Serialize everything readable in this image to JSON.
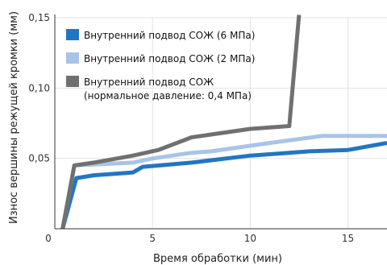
{
  "chart_data": {
    "type": "line",
    "title": "",
    "xlabel": "Время обработки (мин)",
    "ylabel": "Износ вершины режущей кромки (мм)",
    "xlim": [
      0,
      17
    ],
    "ylim": [
      0,
      0.15
    ],
    "x_ticks": [
      "0",
      "5",
      "10",
      "15"
    ],
    "y_ticks": [
      "0,05",
      "0,10",
      "0,15"
    ],
    "grid": true,
    "legend_position": "top-left",
    "series": [
      {
        "name": "Внутренний подвод СОЖ (6 МПа)",
        "color": "#2176c2",
        "points": [
          [
            0.4,
            0.0
          ],
          [
            1.1,
            0.036
          ],
          [
            2.0,
            0.038
          ],
          [
            4.0,
            0.04
          ],
          [
            4.5,
            0.044
          ],
          [
            7.0,
            0.047
          ],
          [
            10.0,
            0.052
          ],
          [
            13.0,
            0.055
          ],
          [
            15.0,
            0.056
          ],
          [
            17.0,
            0.061
          ]
        ]
      },
      {
        "name": "Внутренний подвод СОЖ (2 МПа)",
        "color": "#a9c4e6",
        "points": [
          [
            0.4,
            0.0
          ],
          [
            1.0,
            0.045
          ],
          [
            4.0,
            0.047
          ],
          [
            5.0,
            0.05
          ],
          [
            7.0,
            0.054
          ],
          [
            8.0,
            0.055
          ],
          [
            11.0,
            0.061
          ],
          [
            13.7,
            0.066
          ],
          [
            17.0,
            0.066
          ]
        ]
      },
      {
        "name": "Внутренний подвод СОЖ",
        "name_line2": "(нормальное давление: 0,4 МПа)",
        "color": "#707070",
        "points": [
          [
            0.4,
            0.0
          ],
          [
            1.0,
            0.045
          ],
          [
            2.0,
            0.047
          ],
          [
            4.0,
            0.052
          ],
          [
            5.3,
            0.056
          ],
          [
            7.0,
            0.065
          ],
          [
            8.0,
            0.067
          ],
          [
            10.0,
            0.071
          ],
          [
            12.0,
            0.073
          ],
          [
            12.5,
            0.152
          ]
        ]
      }
    ]
  }
}
